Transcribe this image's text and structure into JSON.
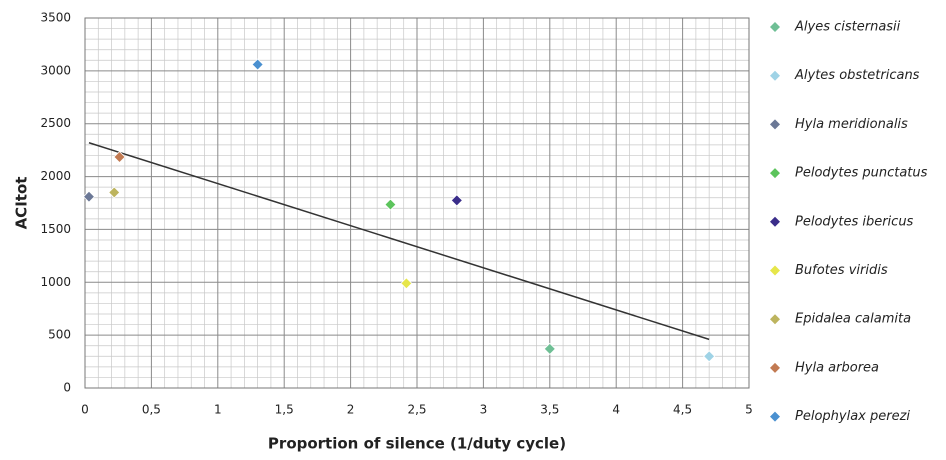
{
  "chart_data": {
    "type": "scatter",
    "x_label": "Proportion of silence (1/duty cycle)",
    "y_label": "ACItot",
    "xlim": [
      0,
      5
    ],
    "xticks": [
      0,
      {
        "value": 0.5,
        "label": "0,5"
      },
      1,
      {
        "value": 1.5,
        "label": "1,5"
      },
      2,
      {
        "value": 2.5,
        "label": "2,5"
      },
      3,
      {
        "value": 3.5,
        "label": "3,5"
      },
      4,
      {
        "value": 4.5,
        "label": "4,5"
      },
      5
    ],
    "ylim": [
      0,
      3500
    ],
    "yticks": [
      0,
      500,
      1000,
      1500,
      2000,
      2500,
      3000,
      3500
    ],
    "grid": true,
    "legend": "right",
    "series": [
      {
        "name": "Alyes cisternasii",
        "color": "#6fbf95",
        "x": [
          3.5
        ],
        "values": [
          370
        ]
      },
      {
        "name": "Alytes obstetricans",
        "color": "#9fd3e6",
        "x": [
          4.7
        ],
        "values": [
          300
        ]
      },
      {
        "name": "Hyla meridionalis",
        "color": "#6b7896",
        "x": [
          0.03
        ],
        "values": [
          1810
        ]
      },
      {
        "name": "Pelodytes punctatus",
        "color": "#5cc45c",
        "x": [
          2.3
        ],
        "values": [
          1735
        ]
      },
      {
        "name": "Pelodytes ibericus",
        "color": "#3a2d8a",
        "x": [
          2.8
        ],
        "values": [
          1775
        ]
      },
      {
        "name": "Bufotes viridis",
        "color": "#e6e64a",
        "x": [
          2.42
        ],
        "values": [
          990
        ]
      },
      {
        "name": "Epidalea calamita",
        "color": "#bdb45e",
        "x": [
          0.22
        ],
        "values": [
          1850
        ]
      },
      {
        "name": "Hyla arborea",
        "color": "#c27a52",
        "x": [
          0.26
        ],
        "values": [
          2185
        ]
      },
      {
        "name": "Pelophylax perezi",
        "color": "#4a90d0",
        "x": [
          1.3
        ],
        "values": [
          3060
        ]
      }
    ],
    "trendline": {
      "color": "#333333",
      "x": [
        0.03,
        4.7
      ],
      "values": [
        2320,
        460
      ]
    }
  }
}
